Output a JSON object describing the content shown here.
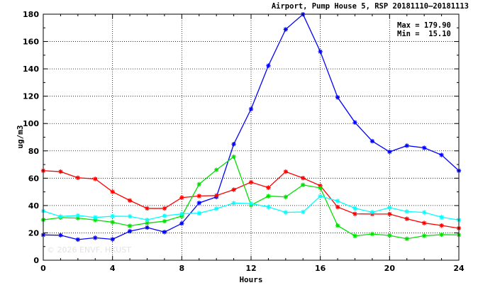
{
  "chart_data": {
    "type": "line",
    "title": "Airport, Pump House 5, RSP 20181110–20181113",
    "xlabel": "Hours",
    "ylabel": "ug/m3",
    "xlim": [
      0,
      24
    ],
    "ylim": [
      0,
      180
    ],
    "x_ticks": [
      "0",
      "4",
      "8",
      "12",
      "16",
      "20",
      "24"
    ],
    "y_ticks": [
      "0",
      "20",
      "40",
      "60",
      "80",
      "100",
      "120",
      "140",
      "160",
      "180"
    ],
    "grid": true,
    "annotations": {
      "max_label": "Max = 179.90",
      "min_label": "Min =  15.10"
    },
    "watermark": "© 2026  ENVF, HKUST",
    "x": [
      0,
      1,
      2,
      3,
      4,
      5,
      6,
      7,
      8,
      9,
      10,
      11,
      12,
      13,
      14,
      15,
      16,
      17,
      18,
      19,
      20,
      21,
      22,
      23,
      24
    ],
    "series": [
      {
        "color": "#0000ff",
        "values": [
          18.5,
          18.3,
          15.1,
          16.4,
          15.3,
          21.2,
          23.9,
          20.6,
          26.9,
          41.9,
          46.3,
          84.9,
          110.6,
          142.3,
          168.9,
          179.9,
          152.6,
          119.1,
          100.8,
          87.1,
          79.3,
          83.8,
          82.2,
          77.0,
          65.5
        ]
      },
      {
        "color": "#ff0000",
        "values": [
          65.5,
          64.8,
          60.3,
          59.5,
          50.1,
          43.7,
          37.9,
          37.9,
          45.8,
          47.0,
          47.3,
          51.6,
          57.1,
          53.1,
          64.8,
          60.1,
          54.5,
          38.9,
          33.9,
          33.8,
          33.8,
          30.3,
          27.2,
          25.4,
          23.4
        ]
      },
      {
        "color": "#00e000",
        "values": [
          29.5,
          31.2,
          30.8,
          29.4,
          27.8,
          25.1,
          27.2,
          28.5,
          32.3,
          55.6,
          66.1,
          75.7,
          40.3,
          46.9,
          46.3,
          55.1,
          52.9,
          25.3,
          17.8,
          19.2,
          18.1,
          15.7,
          17.9,
          18.7,
          18.5
        ]
      },
      {
        "color": "#00ffff",
        "values": [
          36.0,
          32.0,
          32.7,
          31.3,
          32.2,
          32.1,
          29.5,
          32.5,
          33.9,
          34.4,
          37.7,
          41.8,
          41.4,
          39.0,
          35.0,
          35.3,
          46.8,
          43.3,
          38.0,
          35.1,
          38.5,
          35.6,
          35.0,
          31.5,
          29.4
        ]
      }
    ]
  }
}
